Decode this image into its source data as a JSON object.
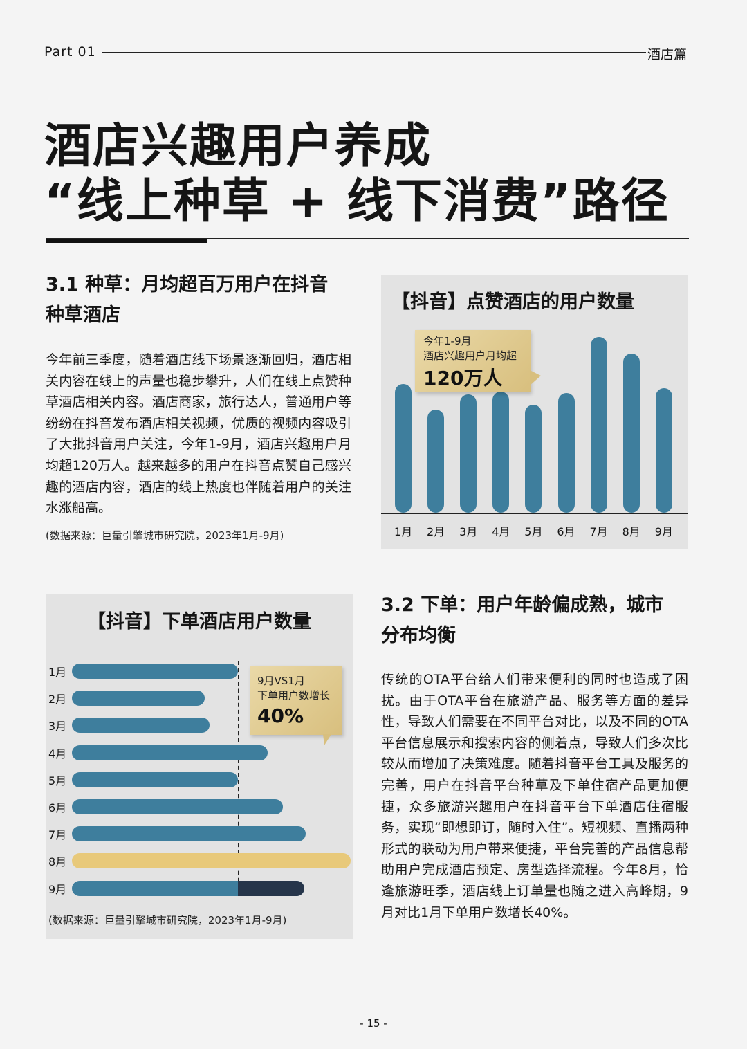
{
  "header": {
    "part": "Part  01",
    "section": "酒店篇"
  },
  "title": {
    "line1": "酒店兴趣用户养成",
    "line2": "“线上种草 + 线下消费”路径"
  },
  "section1": {
    "heading_line1": "3.1 种草：月均超百万用户在抖音",
    "heading_line2": "种草酒店",
    "paragraph": "今年前三季度，随着酒店线下场景逐渐回归，酒店相关内容在线上的声量也稳步攀升，人们在线上点赞种草酒店相关内容。酒店商家，旅行达人，普通用户等纷纷在抖音发布酒店相关视频，优质的视频内容吸引了大批抖音用户关注，今年1-9月，酒店兴趣用户月均超120万人。越来越多的用户在抖音点赞自己感兴趣的酒店内容，酒店的线上热度也伴随着用户的关注水涨船高。",
    "source": "(数据来源：巨量引擎城市研究院，2023年1月-9月)"
  },
  "section2": {
    "heading_line1": "3.2  下单：用户年龄偏成熟，城市",
    "heading_line2": "分布均衡",
    "paragraph": "传统的OTA平台给人们带来便利的同时也造成了困扰。由于OTA平台在旅游产品、服务等方面的差异性，导致人们需要在不同平台对比，以及不同的OTA平台信息展示和搜索内容的侧着点，导致人们多次比较从而增加了决策难度。随着抖音平台工具及服务的完善，用户在抖音平台种草及下单住宿产品更加便捷，众多旅游兴趣用户在抖音平台下单酒店住宿服务，实现“即想即订，随时入住”。短视频、直播两种形式的联动为用户带来便捷，平台完善的产品信息帮助用户完成酒店预定、房型选择流程。今年8月，恰逢旅游旺季，酒店线上订单量也随之进入高峰期，9月对比1月下单用户数增长40%。"
  },
  "chart_data": [
    {
      "type": "bar",
      "orientation": "vertical",
      "title": "【抖音】点赞酒店的用户数量",
      "categories": [
        "1月",
        "2月",
        "3月",
        "4月",
        "5月",
        "6月",
        "7月",
        "8月",
        "9月"
      ],
      "values": [
        100,
        80,
        92,
        94,
        84,
        93,
        137,
        124,
        97
      ],
      "ylim": [
        0,
        140
      ],
      "axis_values_shown": false,
      "annotation": {
        "line1": "今年1-9月",
        "line2": "酒店兴趣用户月均超",
        "value": "120万人"
      },
      "colors": {
        "bar": "#3e7e9d"
      }
    },
    {
      "type": "bar",
      "orientation": "horizontal",
      "title": "【抖音】下单酒店用户数量",
      "categories": [
        "1月",
        "2月",
        "3月",
        "4月",
        "5月",
        "6月",
        "7月",
        "8月",
        "9月"
      ],
      "values": [
        100,
        80,
        83,
        118,
        100,
        127,
        141,
        168,
        140
      ],
      "xlim": [
        0,
        170
      ],
      "axis_values_shown": false,
      "reference_line_at": 100,
      "highlight_category": "8月",
      "annotation": {
        "line1": "9月VS1月",
        "line2": "下单用户数增长",
        "value": "40%"
      },
      "source": "(数据来源：巨量引擎城市研究院，2023年1月-9月)",
      "colors": {
        "bar": "#3e7e9d",
        "highlight": "#e8c97a",
        "growth": "#26354a"
      }
    }
  ],
  "page_number": "- 15 -"
}
